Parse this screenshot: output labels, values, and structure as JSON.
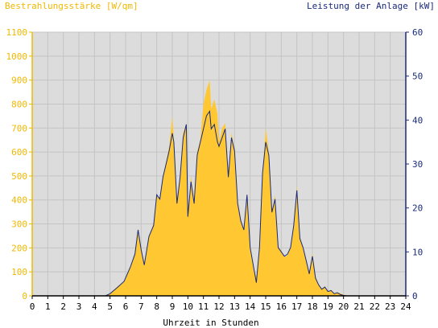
{
  "chart_data": {
    "type": "area",
    "title": "",
    "left_axis": {
      "label": "Bestrahlungsstärke [W/qm]",
      "ticks": [
        "0",
        "100",
        "200",
        "300",
        "400",
        "500",
        "600",
        "700",
        "800",
        "900",
        "1000",
        "1100"
      ],
      "range": [
        0,
        1100
      ],
      "color": "#f0b800"
    },
    "right_axis": {
      "label": "Leistung der Anlage [kW]",
      "ticks": [
        "0",
        "10",
        "20",
        "30",
        "40",
        "50",
        "60"
      ],
      "range": [
        0,
        60
      ],
      "color": "#1a2a7a"
    },
    "x_axis": {
      "label": "Uhrzeit in Stunden",
      "ticks": [
        "0",
        "1",
        "2",
        "3",
        "4",
        "5",
        "6",
        "7",
        "8",
        "9",
        "10",
        "11",
        "12",
        "13",
        "14",
        "15",
        "16",
        "17",
        "18",
        "19",
        "20",
        "21",
        "22",
        "23",
        "24"
      ],
      "range": [
        0,
        24
      ]
    },
    "grid": true,
    "plot_background": "#dcdcdc",
    "series": [
      {
        "name": "Bestrahlungsstärke [W/qm]",
        "axis": "left",
        "kind": "area",
        "color": "#ffc832",
        "points": [
          [
            0,
            0
          ],
          [
            4.7,
            0
          ],
          [
            5.0,
            10
          ],
          [
            5.5,
            40
          ],
          [
            5.9,
            60
          ],
          [
            6.3,
            120
          ],
          [
            6.6,
            180
          ],
          [
            6.8,
            280
          ],
          [
            7.0,
            200
          ],
          [
            7.2,
            130
          ],
          [
            7.5,
            250
          ],
          [
            7.8,
            300
          ],
          [
            8.0,
            420
          ],
          [
            8.2,
            400
          ],
          [
            8.4,
            500
          ],
          [
            8.6,
            560
          ],
          [
            8.8,
            620
          ],
          [
            9.0,
            750
          ],
          [
            9.1,
            650
          ],
          [
            9.3,
            400
          ],
          [
            9.5,
            500
          ],
          [
            9.7,
            680
          ],
          [
            9.9,
            720
          ],
          [
            10.0,
            330
          ],
          [
            10.2,
            500
          ],
          [
            10.4,
            400
          ],
          [
            10.6,
            600
          ],
          [
            10.8,
            650
          ],
          [
            11.0,
            800
          ],
          [
            11.2,
            860
          ],
          [
            11.4,
            900
          ],
          [
            11.5,
            780
          ],
          [
            11.7,
            820
          ],
          [
            11.9,
            760
          ],
          [
            12.0,
            640
          ],
          [
            12.2,
            700
          ],
          [
            12.4,
            720
          ],
          [
            12.6,
            500
          ],
          [
            12.8,
            680
          ],
          [
            13.0,
            610
          ],
          [
            13.2,
            400
          ],
          [
            13.4,
            320
          ],
          [
            13.6,
            280
          ],
          [
            13.8,
            420
          ],
          [
            14.0,
            200
          ],
          [
            14.2,
            120
          ],
          [
            14.4,
            80
          ],
          [
            14.6,
            200
          ],
          [
            14.8,
            500
          ],
          [
            15.0,
            700
          ],
          [
            15.2,
            600
          ],
          [
            15.4,
            350
          ],
          [
            15.6,
            420
          ],
          [
            15.8,
            200
          ],
          [
            16.0,
            190
          ],
          [
            16.2,
            160
          ],
          [
            16.4,
            170
          ],
          [
            16.6,
            200
          ],
          [
            16.8,
            300
          ],
          [
            17.0,
            460
          ],
          [
            17.2,
            250
          ],
          [
            17.4,
            200
          ],
          [
            17.6,
            150
          ],
          [
            17.8,
            100
          ],
          [
            18.0,
            180
          ],
          [
            18.2,
            80
          ],
          [
            18.4,
            50
          ],
          [
            18.6,
            30
          ],
          [
            18.8,
            40
          ],
          [
            19.0,
            15
          ],
          [
            19.2,
            25
          ],
          [
            19.4,
            10
          ],
          [
            19.6,
            15
          ],
          [
            19.8,
            10
          ],
          [
            20.0,
            5
          ],
          [
            20.2,
            0
          ],
          [
            24,
            0
          ]
        ]
      },
      {
        "name": "Leistung der Anlage [kW]",
        "axis": "right",
        "kind": "line",
        "color": "#1a2a7a",
        "points": [
          [
            0,
            0
          ],
          [
            4.7,
            0
          ],
          [
            5.0,
            0.5
          ],
          [
            5.5,
            2
          ],
          [
            5.9,
            3.3
          ],
          [
            6.3,
            6.5
          ],
          [
            6.6,
            9.5
          ],
          [
            6.8,
            15
          ],
          [
            7.0,
            10.5
          ],
          [
            7.2,
            7
          ],
          [
            7.5,
            13.5
          ],
          [
            7.8,
            16
          ],
          [
            8.0,
            23
          ],
          [
            8.2,
            22
          ],
          [
            8.4,
            27
          ],
          [
            8.6,
            30
          ],
          [
            8.8,
            33
          ],
          [
            9.0,
            37
          ],
          [
            9.1,
            35
          ],
          [
            9.3,
            21
          ],
          [
            9.5,
            27
          ],
          [
            9.7,
            36
          ],
          [
            9.9,
            39
          ],
          [
            10.0,
            18
          ],
          [
            10.2,
            26
          ],
          [
            10.4,
            21
          ],
          [
            10.6,
            32
          ],
          [
            10.8,
            35
          ],
          [
            11.0,
            38
          ],
          [
            11.2,
            41
          ],
          [
            11.4,
            42
          ],
          [
            11.5,
            38
          ],
          [
            11.7,
            39
          ],
          [
            11.9,
            35
          ],
          [
            12.0,
            34
          ],
          [
            12.2,
            36
          ],
          [
            12.4,
            38
          ],
          [
            12.6,
            27
          ],
          [
            12.8,
            36
          ],
          [
            13.0,
            33
          ],
          [
            13.2,
            21
          ],
          [
            13.4,
            17
          ],
          [
            13.6,
            15
          ],
          [
            13.8,
            23
          ],
          [
            14.0,
            11
          ],
          [
            14.2,
            7
          ],
          [
            14.4,
            3
          ],
          [
            14.6,
            11
          ],
          [
            14.8,
            28
          ],
          [
            15.0,
            35
          ],
          [
            15.2,
            32
          ],
          [
            15.4,
            19
          ],
          [
            15.6,
            22
          ],
          [
            15.8,
            11
          ],
          [
            16.0,
            10
          ],
          [
            16.2,
            9
          ],
          [
            16.4,
            9.5
          ],
          [
            16.6,
            11
          ],
          [
            16.8,
            16
          ],
          [
            17.0,
            24
          ],
          [
            17.2,
            13
          ],
          [
            17.4,
            11
          ],
          [
            17.6,
            8
          ],
          [
            17.8,
            5
          ],
          [
            18.0,
            9
          ],
          [
            18.2,
            4
          ],
          [
            18.4,
            2.5
          ],
          [
            18.6,
            1.5
          ],
          [
            18.8,
            2
          ],
          [
            19.0,
            1
          ],
          [
            19.2,
            1.2
          ],
          [
            19.4,
            0.5
          ],
          [
            19.6,
            0.7
          ],
          [
            19.8,
            0.3
          ],
          [
            20.0,
            0.1
          ],
          [
            20.2,
            0
          ],
          [
            24,
            0
          ]
        ]
      }
    ]
  }
}
